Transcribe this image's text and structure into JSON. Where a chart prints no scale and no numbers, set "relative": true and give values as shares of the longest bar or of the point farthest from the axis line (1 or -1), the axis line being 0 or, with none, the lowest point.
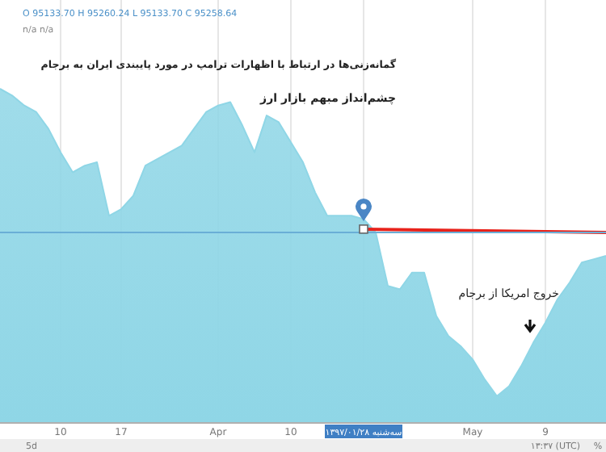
{
  "chart_data": {
    "type": "area",
    "relative": true,
    "title": "گمانه‌زنی‌ها در ارتباط با اظهارات ترامپ در مورد پایبندی ایران به برجام",
    "subtitle": "چشم‌انداز مبهم بازار ارز",
    "categories": [
      null,
      null,
      null,
      null,
      null,
      "10",
      null,
      null,
      null,
      null,
      "17",
      null,
      null,
      null,
      null,
      null,
      null,
      null,
      "Apr",
      null,
      null,
      null,
      null,
      null,
      "10",
      null,
      null,
      null,
      null,
      null,
      "سه‌شنبه ۱۳۹۷/۰۱/۲۸",
      null,
      null,
      null,
      null,
      null,
      null,
      null,
      null,
      "May",
      null,
      null,
      null,
      null,
      null,
      "9",
      null,
      null,
      null,
      null,
      null
    ],
    "series": [
      {
        "color": "#8fd6e6",
        "values": [
          1.0,
          0.98,
          0.95,
          0.93,
          0.88,
          0.81,
          0.75,
          0.77,
          0.78,
          0.62,
          0.64,
          0.68,
          0.77,
          0.79,
          0.81,
          0.83,
          0.88,
          0.93,
          0.95,
          0.96,
          0.89,
          0.81,
          0.92,
          0.9,
          0.84,
          0.78,
          0.69,
          0.62,
          0.62,
          0.62,
          0.61,
          0.57,
          0.41,
          0.4,
          0.45,
          0.45,
          0.32,
          0.26,
          0.23,
          0.19,
          0.13,
          0.08,
          0.11,
          0.17,
          0.24,
          0.3,
          0.37,
          0.42,
          0.48,
          0.49,
          0.5
        ]
      },
      {
        "type": "line",
        "color": "#e8221b",
        "values": [
          null,
          null,
          null,
          null,
          null,
          null,
          null,
          null,
          null,
          null,
          null,
          null,
          null,
          null,
          null,
          null,
          null,
          null,
          null,
          null,
          null,
          null,
          null,
          null,
          null,
          null,
          null,
          null,
          null,
          null,
          0.58,
          null,
          null,
          null,
          null,
          null,
          null,
          null,
          null,
          null,
          null,
          null,
          null,
          null,
          null,
          null,
          null,
          null,
          null,
          null,
          0.57
        ]
      }
    ],
    "ref_lines": [
      {
        "axis": "y",
        "value": 0.57,
        "color": "#6aaed6"
      }
    ],
    "grid": "x",
    "annotations": [
      "O 95133.70 H 95260.24 L 95133.70 C 95258.64",
      "n/a n/a",
      "خروج امریکا از برجام",
      "5d",
      "۱۳:۳۷ (UTC)",
      "%"
    ]
  }
}
